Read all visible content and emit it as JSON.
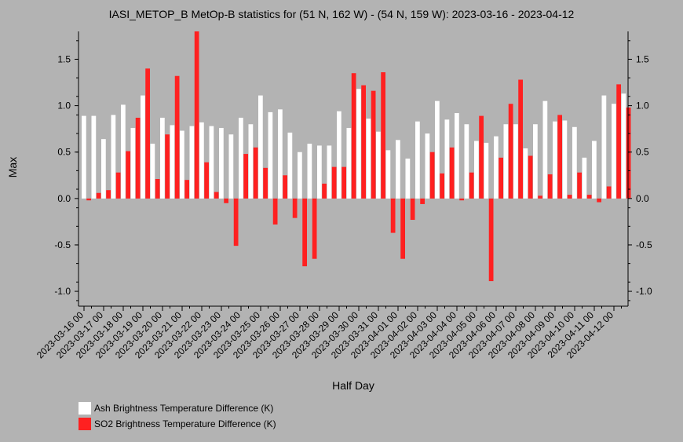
{
  "colors": {
    "ash": "#ffffff",
    "so2": "#ff2020",
    "background": "#b3b3b3"
  },
  "chart_data": {
    "type": "bar",
    "title": "IASI_METOP_B MetOp-B statistics for (51 N, 162 W) - (54 N, 159 W): 2023-03-16 - 2023-04-12",
    "xlabel": "Half Day",
    "ylabel": "Max",
    "ylim": [
      -1.16,
      1.8
    ],
    "yticks": [
      -1.0,
      -0.5,
      0.0,
      0.5,
      1.0,
      1.5
    ],
    "ytick_labels": [
      "-1.0",
      "-0.5",
      "0.0",
      "0.5",
      "1.0",
      "1.5"
    ],
    "xtick_labels": [
      "2023-03-16 00",
      "2023-03-17 00",
      "2023-03-18 00",
      "2023-03-19 00",
      "2023-03-20 00",
      "2023-03-21 00",
      "2023-03-22 00",
      "2023-03-23 00",
      "2023-03-24 00",
      "2023-03-25 00",
      "2023-03-26 00",
      "2023-03-27 00",
      "2023-03-28 00",
      "2023-03-29 00",
      "2023-03-30 00",
      "2023-03-31 00",
      "2023-04-01 00",
      "2023-04-02 00",
      "2023-04-03 00",
      "2023-04-04 00",
      "2023-04-05 00",
      "2023-04-06 00",
      "2023-04-07 00",
      "2023-04-08 00",
      "2023-04-09 00",
      "2023-04-10 00",
      "2023-04-11 00",
      "2023-04-12 00"
    ],
    "legend_position": "bottom-left",
    "grid": false,
    "series": [
      {
        "name": "Ash Brightness Temperature Difference (K)",
        "values": [
          0.89,
          0.89,
          0.64,
          0.9,
          1.01,
          0.76,
          1.11,
          0.59,
          0.87,
          0.79,
          0.73,
          0.78,
          0.82,
          0.78,
          0.76,
          0.69,
          0.87,
          0.8,
          1.11,
          0.93,
          0.96,
          0.71,
          0.5,
          0.59,
          0.57,
          0.57,
          0.94,
          0.76,
          1.18,
          0.86,
          0.72,
          0.52,
          0.63,
          0.43,
          0.83,
          0.7,
          1.05,
          0.85,
          0.92,
          0.8,
          0.62,
          0.6,
          0.67,
          0.8,
          0.8,
          0.54,
          0.8,
          1.05,
          0.83,
          0.84,
          0.77,
          0.44,
          0.62,
          1.11,
          1.02,
          1.13
        ]
      },
      {
        "name": "SO2 Brightness Temperature Difference (K)",
        "values": [
          -0.02,
          0.06,
          0.09,
          0.28,
          0.51,
          0.87,
          1.4,
          0.21,
          0.69,
          1.32,
          0.2,
          1.8,
          0.39,
          0.07,
          -0.05,
          -0.51,
          0.48,
          0.55,
          0.33,
          -0.28,
          0.25,
          -0.21,
          -0.73,
          -0.65,
          0.16,
          0.34,
          0.34,
          1.35,
          1.22,
          1.16,
          1.36,
          -0.37,
          -0.65,
          -0.23,
          -0.06,
          0.5,
          0.27,
          0.55,
          -0.02,
          0.28,
          0.89,
          -0.89,
          0.44,
          1.02,
          1.28,
          0.46,
          0.03,
          0.26,
          0.9,
          0.04,
          0.28,
          0.04,
          -0.04,
          0.13,
          1.23,
          0.98
        ]
      }
    ]
  }
}
